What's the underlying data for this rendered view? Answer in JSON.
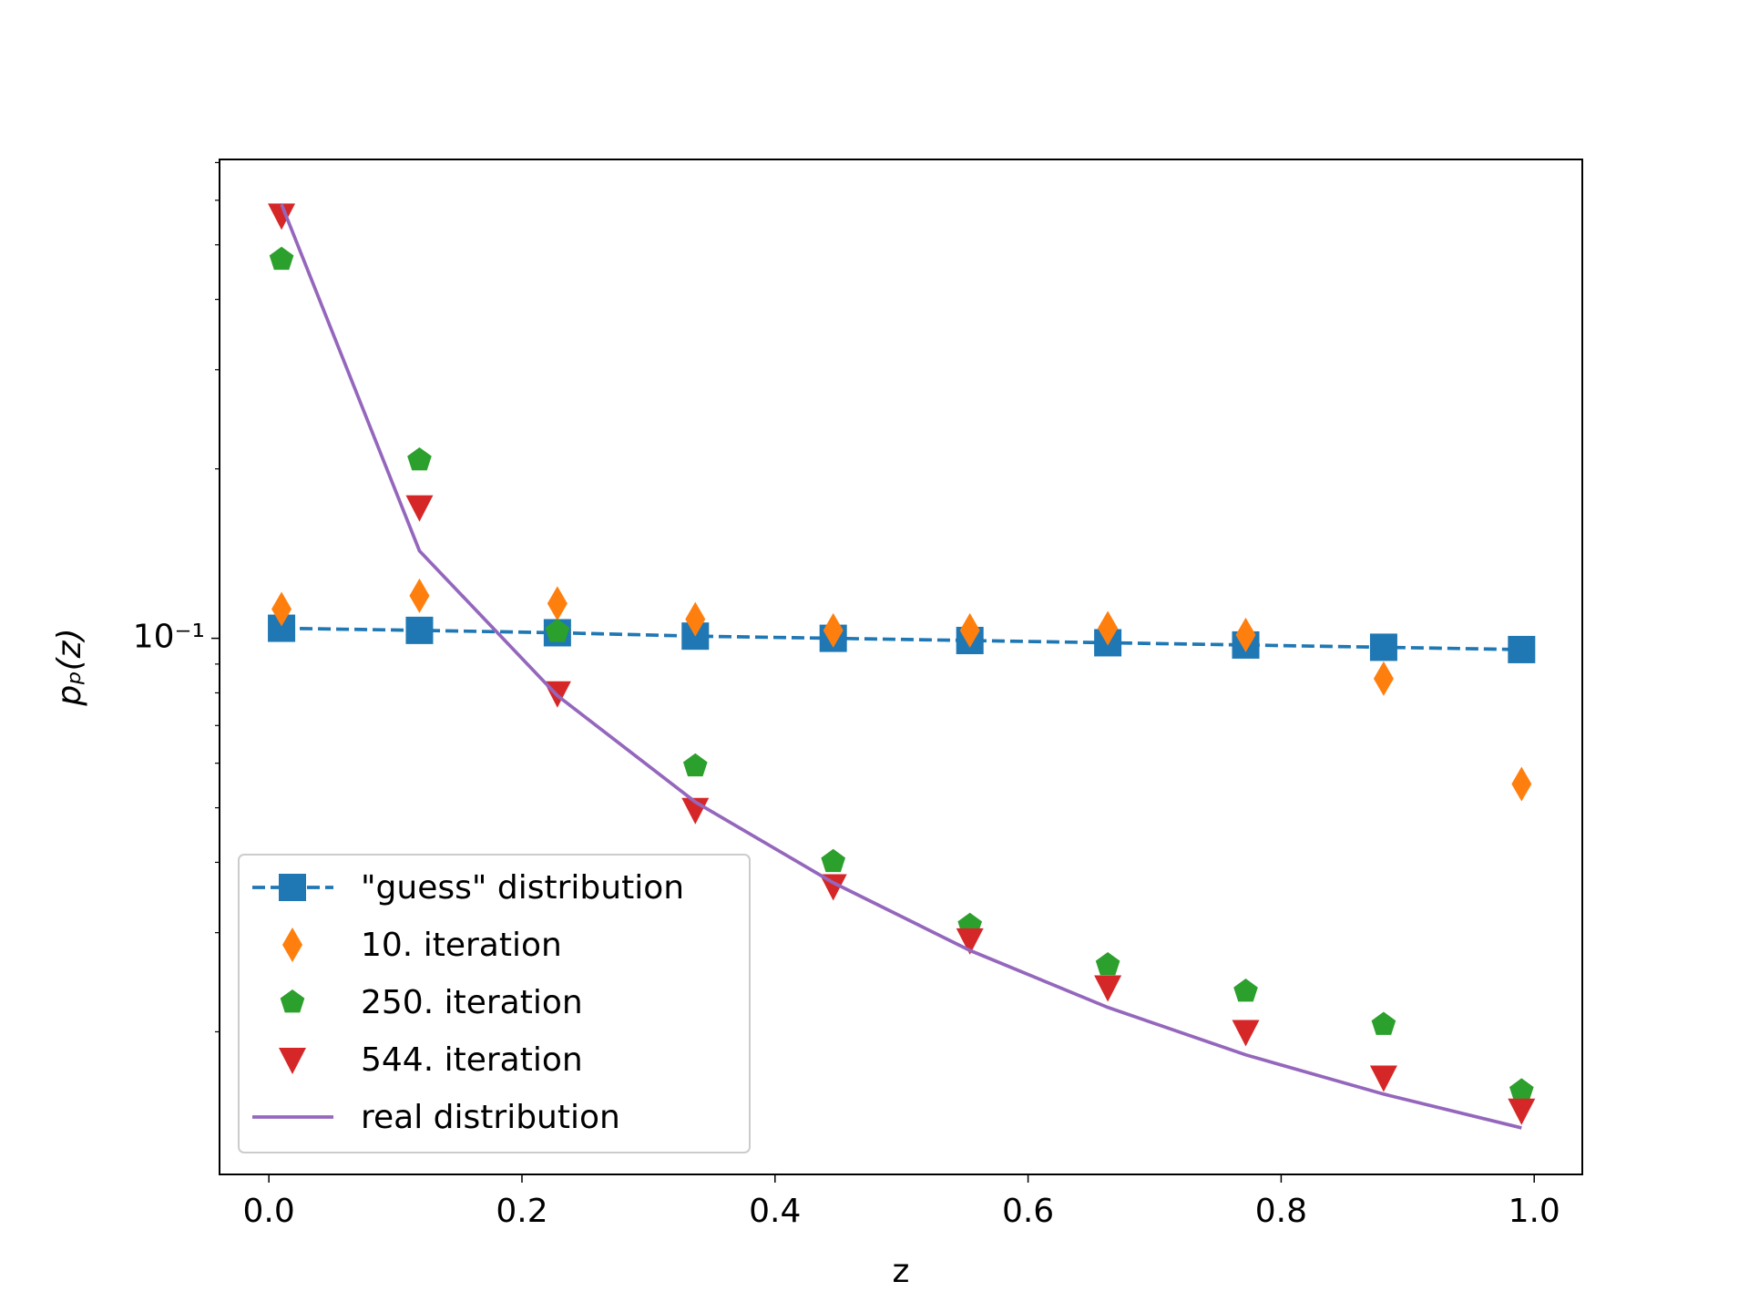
{
  "chart_data": {
    "type": "line",
    "x_label": "z",
    "y_label": "pₚ(z)",
    "yscale": "log",
    "x": [
      0.01,
      0.119,
      0.228,
      0.337,
      0.446,
      0.554,
      0.663,
      0.772,
      0.881,
      0.99
    ],
    "series": [
      {
        "name": "\"guess\" distribution",
        "color": "#1f77b4",
        "marker": "square",
        "linestyle": "dashed",
        "values": [
          0.1042,
          0.1033,
          0.1023,
          0.1009,
          0.1,
          0.0991,
          0.0982,
          0.0973,
          0.0964,
          0.0955
        ]
      },
      {
        "name": "10. iteration",
        "color": "#ff7f0e",
        "marker": "thin-diamond",
        "linestyle": "none",
        "values": [
          0.1127,
          0.119,
          0.1153,
          0.1081,
          0.1033,
          0.1033,
          0.1042,
          0.1014,
          0.0848,
          0.0551
        ]
      },
      {
        "name": "250. iteration",
        "color": "#2ca02c",
        "marker": "pentagon",
        "linestyle": "none",
        "values": [
          0.471,
          0.2073,
          0.1028,
          0.0593,
          0.0401,
          0.0309,
          0.0263,
          0.0236,
          0.0206,
          0.0157
        ]
      },
      {
        "name": "544. iteration",
        "color": "#d62728",
        "marker": "triangle-down",
        "linestyle": "none",
        "values": [
          0.564,
          0.171,
          0.0799,
          0.0496,
          0.0363,
          0.0291,
          0.024,
          0.02,
          0.0166,
          0.0145
        ]
      },
      {
        "name": "real distribution",
        "color": "#9467bd",
        "marker": "none",
        "linestyle": "solid",
        "values": [
          0.59,
          0.143,
          0.0791,
          0.0512,
          0.0368,
          0.0279,
          0.0221,
          0.0182,
          0.0155,
          0.0135
        ]
      }
    ],
    "xlim": [
      -0.039,
      1.038
    ],
    "ylim": [
      0.01116,
      0.709
    ],
    "xticks": [
      {
        "value": 0,
        "label": "0.0"
      },
      0.2,
      0.4,
      0.6,
      0.8,
      {
        "value": 1,
        "label": "1.0"
      }
    ],
    "yticks": [
      {
        "value": 0.1,
        "label": "10⁻¹"
      }
    ],
    "yminorticks": [
      0.02,
      0.03,
      0.04,
      0.05,
      0.06,
      0.07,
      0.08,
      0.09,
      0.2,
      0.3,
      0.4,
      0.5,
      0.6,
      0.7
    ],
    "legend": "lower left"
  }
}
